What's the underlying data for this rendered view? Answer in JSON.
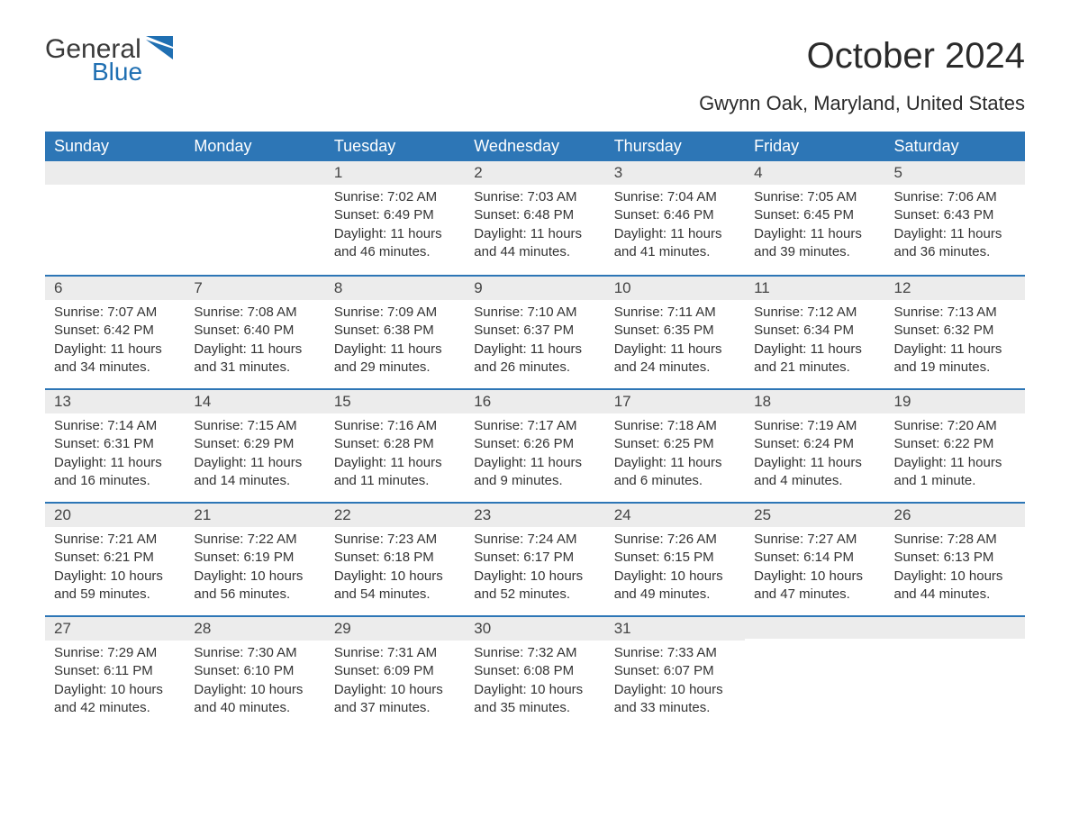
{
  "brand": {
    "line1": "General",
    "line2": "Blue",
    "text_color": "#3a3a3a",
    "accent_color": "#1f6fb2"
  },
  "header": {
    "title": "October 2024",
    "location": "Gwynn Oak, Maryland, United States"
  },
  "calendar": {
    "header_bg": "#2d76b6",
    "header_fg": "#ffffff",
    "row_border_color": "#2d76b6",
    "daynum_bg": "#ececec",
    "text_color": "#333333",
    "font_size_body": 15,
    "font_size_daynum": 17,
    "font_size_header": 18,
    "days": [
      "Sunday",
      "Monday",
      "Tuesday",
      "Wednesday",
      "Thursday",
      "Friday",
      "Saturday"
    ],
    "weeks": [
      [
        null,
        null,
        {
          "n": "1",
          "sunrise": "7:02 AM",
          "sunset": "6:49 PM",
          "daylight": "11 hours and 46 minutes."
        },
        {
          "n": "2",
          "sunrise": "7:03 AM",
          "sunset": "6:48 PM",
          "daylight": "11 hours and 44 minutes."
        },
        {
          "n": "3",
          "sunrise": "7:04 AM",
          "sunset": "6:46 PM",
          "daylight": "11 hours and 41 minutes."
        },
        {
          "n": "4",
          "sunrise": "7:05 AM",
          "sunset": "6:45 PM",
          "daylight": "11 hours and 39 minutes."
        },
        {
          "n": "5",
          "sunrise": "7:06 AM",
          "sunset": "6:43 PM",
          "daylight": "11 hours and 36 minutes."
        }
      ],
      [
        {
          "n": "6",
          "sunrise": "7:07 AM",
          "sunset": "6:42 PM",
          "daylight": "11 hours and 34 minutes."
        },
        {
          "n": "7",
          "sunrise": "7:08 AM",
          "sunset": "6:40 PM",
          "daylight": "11 hours and 31 minutes."
        },
        {
          "n": "8",
          "sunrise": "7:09 AM",
          "sunset": "6:38 PM",
          "daylight": "11 hours and 29 minutes."
        },
        {
          "n": "9",
          "sunrise": "7:10 AM",
          "sunset": "6:37 PM",
          "daylight": "11 hours and 26 minutes."
        },
        {
          "n": "10",
          "sunrise": "7:11 AM",
          "sunset": "6:35 PM",
          "daylight": "11 hours and 24 minutes."
        },
        {
          "n": "11",
          "sunrise": "7:12 AM",
          "sunset": "6:34 PM",
          "daylight": "11 hours and 21 minutes."
        },
        {
          "n": "12",
          "sunrise": "7:13 AM",
          "sunset": "6:32 PM",
          "daylight": "11 hours and 19 minutes."
        }
      ],
      [
        {
          "n": "13",
          "sunrise": "7:14 AM",
          "sunset": "6:31 PM",
          "daylight": "11 hours and 16 minutes."
        },
        {
          "n": "14",
          "sunrise": "7:15 AM",
          "sunset": "6:29 PM",
          "daylight": "11 hours and 14 minutes."
        },
        {
          "n": "15",
          "sunrise": "7:16 AM",
          "sunset": "6:28 PM",
          "daylight": "11 hours and 11 minutes."
        },
        {
          "n": "16",
          "sunrise": "7:17 AM",
          "sunset": "6:26 PM",
          "daylight": "11 hours and 9 minutes."
        },
        {
          "n": "17",
          "sunrise": "7:18 AM",
          "sunset": "6:25 PM",
          "daylight": "11 hours and 6 minutes."
        },
        {
          "n": "18",
          "sunrise": "7:19 AM",
          "sunset": "6:24 PM",
          "daylight": "11 hours and 4 minutes."
        },
        {
          "n": "19",
          "sunrise": "7:20 AM",
          "sunset": "6:22 PM",
          "daylight": "11 hours and 1 minute."
        }
      ],
      [
        {
          "n": "20",
          "sunrise": "7:21 AM",
          "sunset": "6:21 PM",
          "daylight": "10 hours and 59 minutes."
        },
        {
          "n": "21",
          "sunrise": "7:22 AM",
          "sunset": "6:19 PM",
          "daylight": "10 hours and 56 minutes."
        },
        {
          "n": "22",
          "sunrise": "7:23 AM",
          "sunset": "6:18 PM",
          "daylight": "10 hours and 54 minutes."
        },
        {
          "n": "23",
          "sunrise": "7:24 AM",
          "sunset": "6:17 PM",
          "daylight": "10 hours and 52 minutes."
        },
        {
          "n": "24",
          "sunrise": "7:26 AM",
          "sunset": "6:15 PM",
          "daylight": "10 hours and 49 minutes."
        },
        {
          "n": "25",
          "sunrise": "7:27 AM",
          "sunset": "6:14 PM",
          "daylight": "10 hours and 47 minutes."
        },
        {
          "n": "26",
          "sunrise": "7:28 AM",
          "sunset": "6:13 PM",
          "daylight": "10 hours and 44 minutes."
        }
      ],
      [
        {
          "n": "27",
          "sunrise": "7:29 AM",
          "sunset": "6:11 PM",
          "daylight": "10 hours and 42 minutes."
        },
        {
          "n": "28",
          "sunrise": "7:30 AM",
          "sunset": "6:10 PM",
          "daylight": "10 hours and 40 minutes."
        },
        {
          "n": "29",
          "sunrise": "7:31 AM",
          "sunset": "6:09 PM",
          "daylight": "10 hours and 37 minutes."
        },
        {
          "n": "30",
          "sunrise": "7:32 AM",
          "sunset": "6:08 PM",
          "daylight": "10 hours and 35 minutes."
        },
        {
          "n": "31",
          "sunrise": "7:33 AM",
          "sunset": "6:07 PM",
          "daylight": "10 hours and 33 minutes."
        },
        null,
        null
      ]
    ],
    "labels": {
      "sunrise": "Sunrise:",
      "sunset": "Sunset:",
      "daylight": "Daylight:"
    }
  }
}
